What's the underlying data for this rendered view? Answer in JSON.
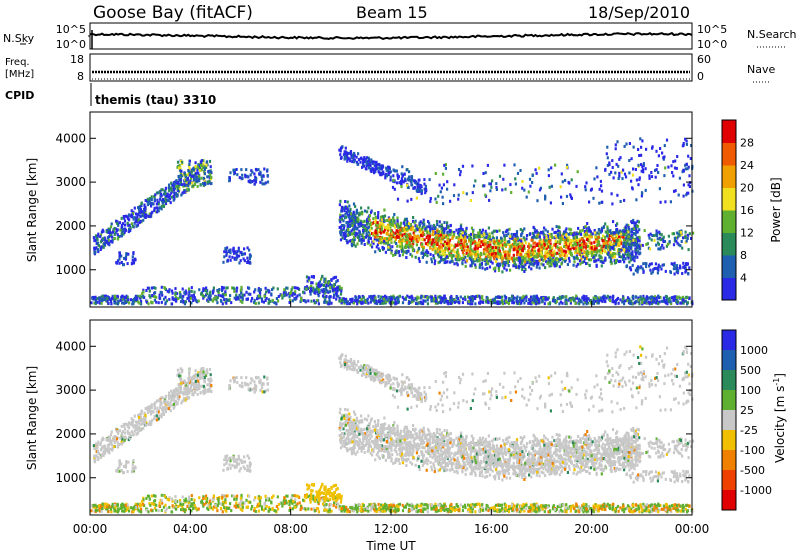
{
  "header": {
    "station": "Goose Bay (fitACF)",
    "beam": "Beam 15",
    "date": "18/Sep/2010"
  },
  "noise_panel": {
    "left_label": "N.Sky",
    "right_label": "N.Search",
    "left_ticks": [
      "10^5",
      "10^0"
    ],
    "right_ticks": [
      "10^5",
      "10^0"
    ]
  },
  "freq_panel": {
    "left_label_line1": "Freq.",
    "left_label_line2": "[MHz]",
    "left_ticks": [
      "18",
      "8"
    ],
    "right_label": "Nave",
    "right_ticks": [
      "60",
      "0"
    ]
  },
  "cpid": {
    "label": "CPID",
    "value": "themis (tau) 3310"
  },
  "chart_data": [
    {
      "type": "heatmap",
      "name": "power",
      "ylabel": "Slant Range [km]",
      "yticks": [
        "1000",
        "2000",
        "3000",
        "4000"
      ],
      "ylim": [
        150,
        4600
      ],
      "colorbar": {
        "label": "Power [dB]",
        "ticks": [
          "4",
          "8",
          "12",
          "16",
          "20",
          "24",
          "28"
        ],
        "range": [
          0,
          32
        ],
        "colors": [
          "#2a2ae6",
          "#1f5fb0",
          "#2b8a5a",
          "#5fb030",
          "#f0e020",
          "#f0a000",
          "#f05a00",
          "#e00000"
        ]
      },
      "scatter_regions": [
        {
          "t": [
            2.2,
            4.4
          ],
          "r": [
            2300,
            3500
          ],
          "level": "weak-mixed"
        },
        {
          "t": [
            0.1,
            1.3
          ],
          "r": [
            1350,
            2200
          ],
          "level": "weak"
        },
        {
          "t": [
            3.5,
            4.6
          ],
          "r": [
            2900,
            3500
          ],
          "level": "medium"
        },
        {
          "t": [
            9.9,
            21.5
          ],
          "r": [
            1100,
            2400
          ],
          "level": "strong-band"
        },
        {
          "t": [
            20.5,
            24.0
          ],
          "r": [
            1400,
            1900
          ],
          "level": "medium"
        },
        {
          "t": [
            0.0,
            24.0
          ],
          "r": [
            200,
            400
          ],
          "level": "ground-scatter"
        }
      ]
    },
    {
      "type": "heatmap",
      "name": "velocity",
      "ylabel": "Slant Range [km]",
      "yticks": [
        "1000",
        "2000",
        "3000",
        "4000"
      ],
      "ylim": [
        150,
        4600
      ],
      "colorbar": {
        "label": "Velocity [m s^-1]",
        "ticks": [
          "1000",
          "500",
          "100",
          "25",
          "-25",
          "-100",
          "-500",
          "-1000"
        ],
        "colors": [
          "#2a2ae6",
          "#1f5fb0",
          "#2b8a5a",
          "#5fb030",
          "#c8c8c8",
          "#f0c000",
          "#f08000",
          "#f04000",
          "#e00000"
        ]
      }
    }
  ],
  "xaxis": {
    "label": "Time UT",
    "ticks": [
      "00:00",
      "04:00",
      "08:00",
      "12:00",
      "16:00",
      "20:00",
      "00:00"
    ],
    "range_hours": [
      0,
      24
    ]
  },
  "colors": {
    "grid": "#000000",
    "ground_scatter": "#a0a0a0"
  }
}
